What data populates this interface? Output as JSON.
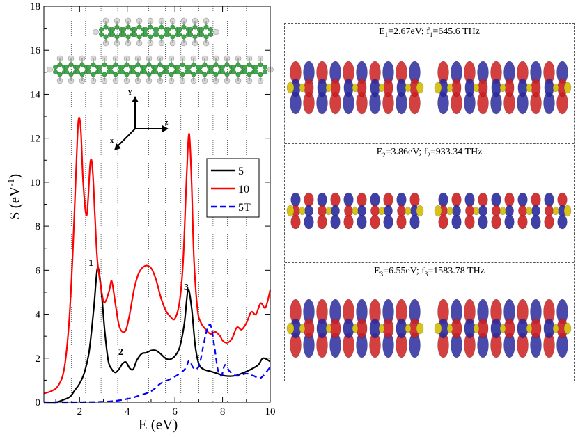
{
  "chart_data": {
    "type": "line",
    "xlabel": "E (eV)",
    "ylabel_base": "S (eV",
    "ylabel_exp": "-1",
    "ylabel_close": ")",
    "xlim": [
      0.5,
      10
    ],
    "ylim": [
      0,
      18
    ],
    "xticks": [
      2,
      4,
      6,
      8,
      10
    ],
    "yticks": [
      0,
      2,
      4,
      6,
      8,
      10,
      12,
      14,
      16,
      18
    ],
    "vlines": [
      1.65,
      2.25,
      2.9,
      3.6,
      4.2,
      4.9,
      5.6,
      6.25,
      7.0,
      7.6,
      8.2,
      9.0
    ],
    "series": [
      {
        "name": "5",
        "color": "#000000",
        "dash": "",
        "x": [
          0.5,
          1.0,
          1.3,
          1.6,
          1.8,
          2.0,
          2.2,
          2.4,
          2.6,
          2.75,
          2.9,
          3.05,
          3.2,
          3.35,
          3.5,
          3.65,
          3.8,
          3.95,
          4.1,
          4.25,
          4.4,
          4.6,
          4.8,
          5.0,
          5.2,
          5.4,
          5.6,
          5.8,
          6.0,
          6.2,
          6.4,
          6.55,
          6.7,
          6.85,
          7.0,
          7.2,
          7.5,
          7.8,
          8.1,
          8.5,
          8.9,
          9.2,
          9.5,
          9.7,
          10.0
        ],
        "y": [
          0,
          0,
          0.1,
          0.25,
          0.55,
          0.85,
          1.35,
          2.3,
          4.3,
          6.1,
          5.2,
          3.3,
          1.9,
          1.5,
          1.35,
          1.5,
          1.75,
          1.82,
          1.55,
          1.5,
          1.9,
          2.2,
          2.25,
          2.35,
          2.35,
          2.2,
          2.0,
          1.95,
          2.1,
          2.5,
          3.6,
          5.1,
          4.3,
          2.6,
          1.75,
          1.5,
          1.4,
          1.3,
          1.2,
          1.2,
          1.35,
          1.5,
          1.7,
          2.0,
          1.85
        ]
      },
      {
        "name": "10",
        "color": "#ff0000",
        "dash": "",
        "x": [
          0.5,
          0.8,
          1.1,
          1.35,
          1.55,
          1.7,
          1.85,
          1.95,
          2.05,
          2.15,
          2.3,
          2.45,
          2.55,
          2.65,
          2.75,
          2.9,
          3.0,
          3.1,
          3.25,
          3.35,
          3.5,
          3.65,
          3.8,
          3.95,
          4.1,
          4.3,
          4.5,
          4.75,
          5.0,
          5.2,
          5.4,
          5.6,
          5.8,
          6.0,
          6.2,
          6.35,
          6.5,
          6.6,
          6.7,
          6.8,
          6.95,
          7.1,
          7.3,
          7.5,
          7.7,
          7.9,
          8.0,
          8.2,
          8.4,
          8.6,
          8.8,
          9.0,
          9.2,
          9.4,
          9.6,
          9.8,
          10.0
        ],
        "y": [
          0.4,
          0.5,
          0.75,
          1.5,
          3.5,
          6.5,
          10.5,
          12.8,
          12.4,
          10.0,
          8.5,
          10.9,
          10.5,
          8.3,
          6.4,
          5.2,
          4.6,
          4.6,
          5.1,
          5.5,
          4.5,
          3.5,
          3.2,
          3.3,
          4.0,
          5.2,
          5.9,
          6.2,
          6.1,
          5.6,
          4.8,
          4.2,
          3.9,
          3.8,
          4.6,
          6.5,
          10.5,
          12.2,
          10.0,
          6.5,
          4.2,
          3.6,
          3.3,
          3.1,
          3.2,
          3.0,
          2.8,
          2.7,
          2.9,
          3.4,
          3.3,
          3.6,
          4.1,
          4.0,
          4.5,
          4.3,
          5.1
        ]
      },
      {
        "name": "5T",
        "color": "#0000ff",
        "dash": "8,5",
        "x": [
          0.5,
          3.0,
          4.0,
          4.5,
          5.0,
          5.4,
          5.8,
          6.2,
          6.45,
          6.6,
          6.75,
          6.9,
          7.05,
          7.2,
          7.35,
          7.5,
          7.65,
          7.8,
          7.95,
          8.1,
          8.3,
          8.6,
          9.0,
          9.3,
          9.6,
          10.0
        ],
        "y": [
          0,
          0.02,
          0.15,
          0.3,
          0.5,
          0.85,
          1.05,
          1.3,
          1.55,
          1.9,
          1.6,
          1.5,
          1.8,
          2.6,
          3.3,
          3.5,
          2.6,
          1.5,
          1.2,
          1.7,
          1.4,
          1.2,
          1.3,
          1.2,
          1.1,
          1.6
        ]
      }
    ],
    "annotations": [
      {
        "text": "1",
        "x": 2.55,
        "y": 6.1
      },
      {
        "text": "2",
        "x": 3.8,
        "y": 2.05
      },
      {
        "text": "3",
        "x": 6.55,
        "y": 5.0
      }
    ],
    "axes_labels": {
      "y": "Y",
      "z": "z",
      "x": "x"
    },
    "legend": {
      "position": "right-middle",
      "entries": [
        "5",
        "10",
        "5T"
      ]
    }
  },
  "panels": [
    {
      "e_sym": "E",
      "e_sub": "1",
      "e_val": "=2.67eV; ",
      "f_sym": "f",
      "f_sub": "1",
      "f_val": "=645.6 THz",
      "style": "a"
    },
    {
      "e_sym": "E",
      "e_sub": "2",
      "e_val": "=3.86eV; ",
      "f_sym": "f",
      "f_sub": "2",
      "f_val": "=933.34 THz",
      "style": "b"
    },
    {
      "e_sym": "E",
      "e_sub": "3",
      "e_val": "=6.55eV; ",
      "f_sym": "f",
      "f_sub": "3",
      "f_val": "=1583.78 THz",
      "style": "c"
    }
  ],
  "colors": {
    "red": "#cc1f1f",
    "blue": "#2a2a9e",
    "yellow": "#d8c21a",
    "molecule_c": "#3fa84a",
    "molecule_h": "#d6d6d6"
  }
}
